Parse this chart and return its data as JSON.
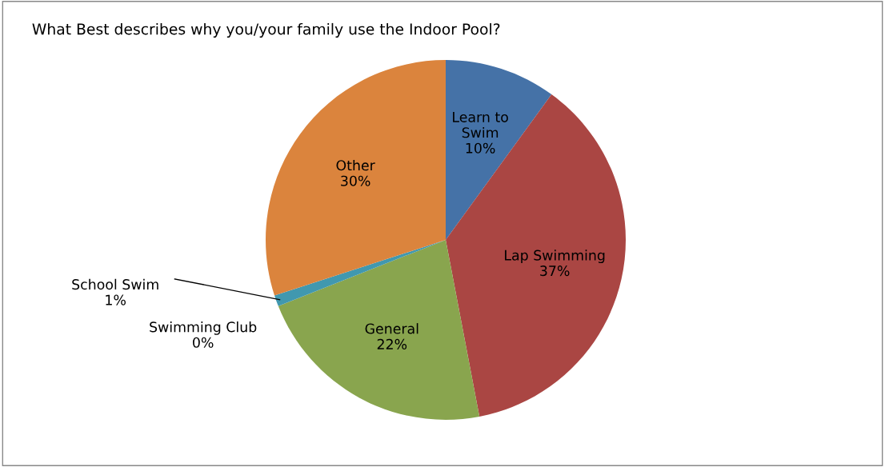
{
  "chart_data": {
    "type": "pie",
    "title": "What Best describes why you/your family use the Indoor Pool?",
    "categories": [
      "Learn to Swim",
      "Lap Swimming",
      "General",
      "Swimming Club",
      "School Swim",
      "Other"
    ],
    "values": [
      10,
      37,
      22,
      0,
      1,
      30
    ],
    "value_labels": [
      "10%",
      "37%",
      "22%",
      "0%",
      "1%",
      "30%"
    ],
    "colors": [
      "#4572a7",
      "#aa4643",
      "#89a54e",
      "#71588f",
      "#4198af",
      "#db843d"
    ],
    "legend": false
  }
}
